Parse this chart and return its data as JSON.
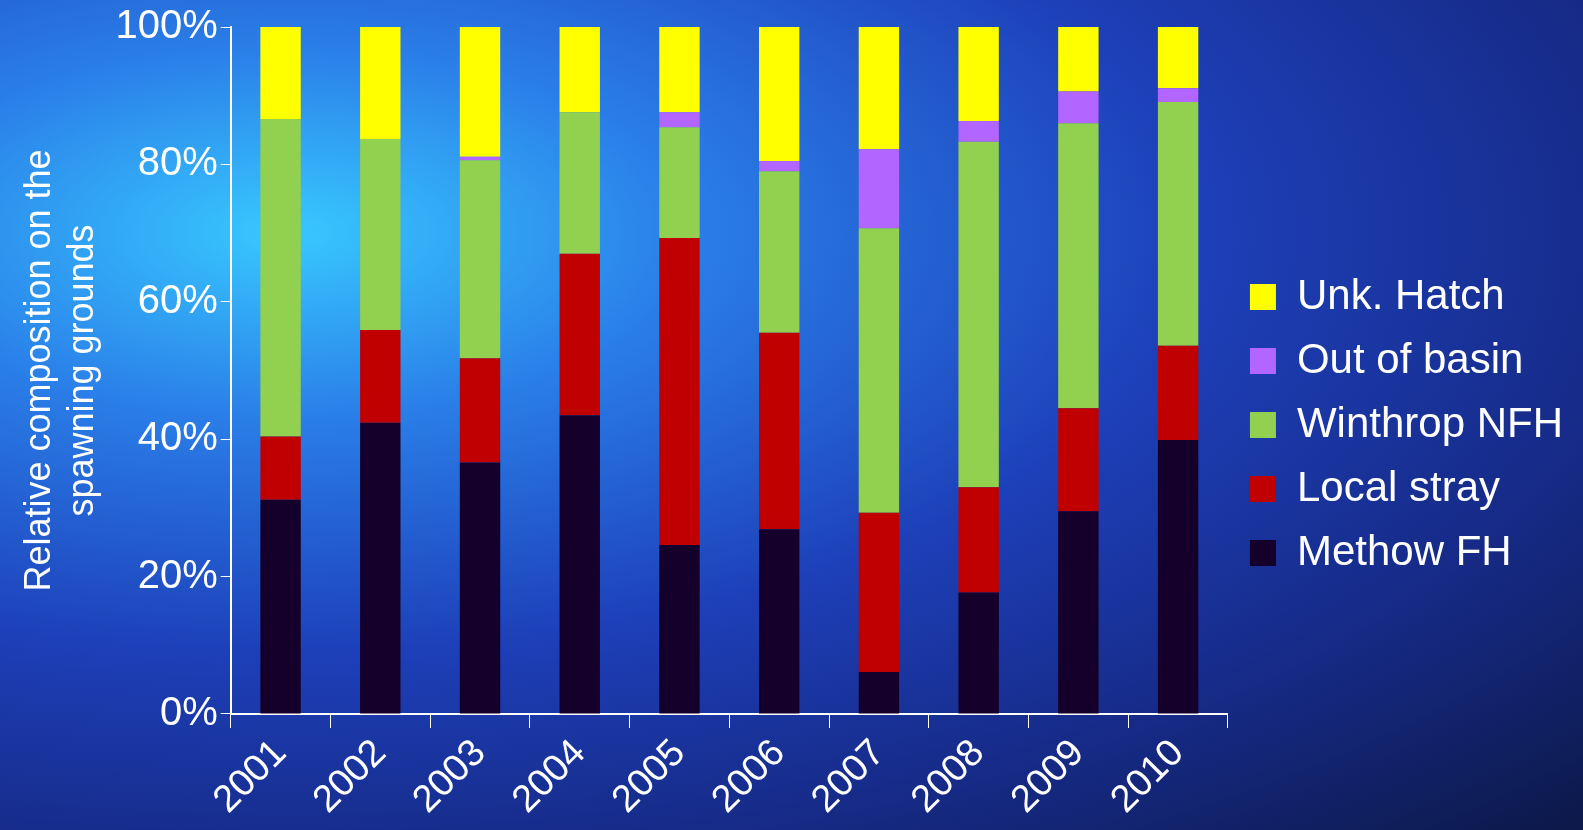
{
  "chart_data": {
    "type": "bar",
    "stacked": true,
    "ylabel": "Relative composition on the\nspawning grounds",
    "categories": [
      "2001",
      "2002",
      "2003",
      "2004",
      "2005",
      "2006",
      "2007",
      "2008",
      "2009",
      "2010"
    ],
    "series": [
      {
        "name": "Methow FH",
        "color": "#14002a",
        "values": [
          31.2,
          42.4,
          36.6,
          43.5,
          24.6,
          26.9,
          6.1,
          17.7,
          29.5,
          39.9
        ]
      },
      {
        "name": "Local stray",
        "color": "#c00000",
        "values": [
          9.2,
          13.5,
          15.2,
          23.5,
          44.7,
          28.6,
          23.2,
          15.3,
          15.0,
          13.7
        ]
      },
      {
        "name": "Winthrop NFH",
        "color": "#92d050",
        "values": [
          46.2,
          27.8,
          28.8,
          20.6,
          16.1,
          23.5,
          41.4,
          50.3,
          41.5,
          35.5
        ]
      },
      {
        "name": "Out of basin",
        "color": "#b266ff",
        "values": [
          0,
          0,
          0.5,
          0,
          2.2,
          1.5,
          11.5,
          3.0,
          4.6,
          2.0
        ]
      },
      {
        "name": "Unk. Hatch",
        "color": "#ffff00",
        "values": [
          13.4,
          16.3,
          18.9,
          12.4,
          12.4,
          19.5,
          17.8,
          13.7,
          9.4,
          8.9
        ]
      }
    ],
    "ylim": [
      0,
      100
    ],
    "yticks": [
      {
        "value": 0,
        "label": "0%"
      },
      {
        "value": 20,
        "label": "20%"
      },
      {
        "value": 40,
        "label": "40%"
      },
      {
        "value": 60,
        "label": "60%"
      },
      {
        "value": 80,
        "label": "80%"
      },
      {
        "value": 100,
        "label": "100%"
      }
    ],
    "grid": false,
    "legend": "right"
  }
}
